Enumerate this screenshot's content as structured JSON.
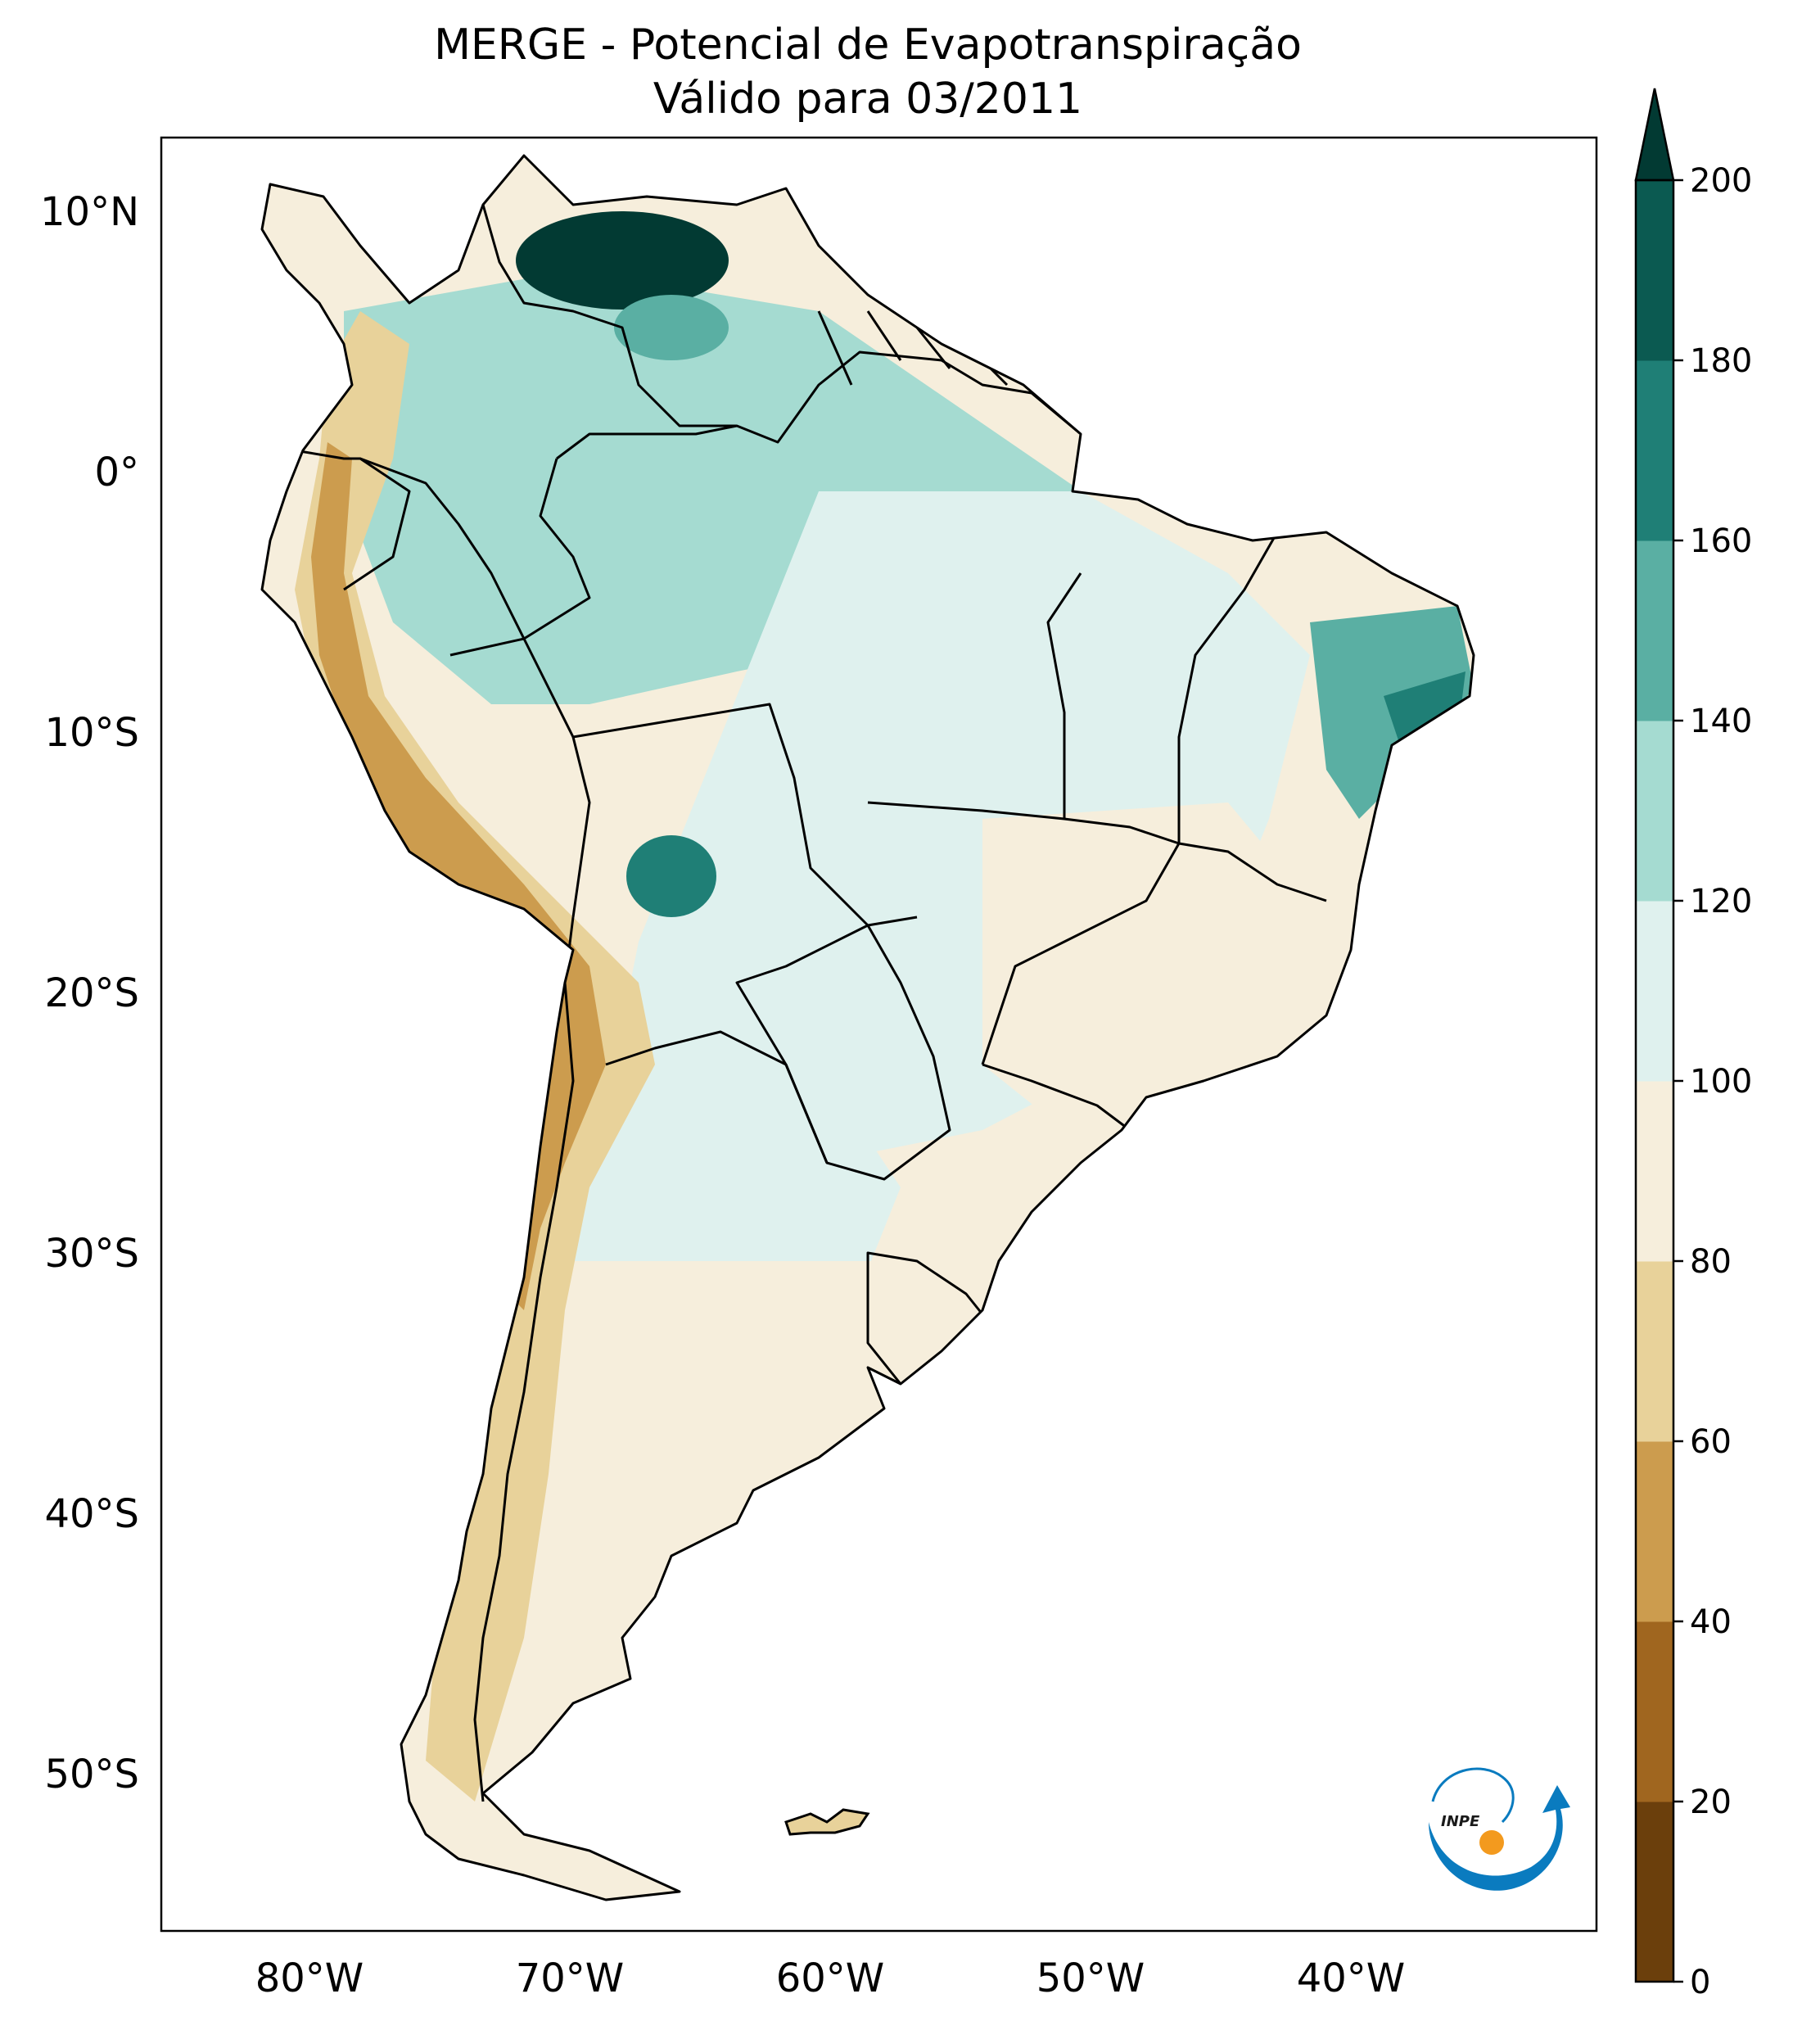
{
  "title": {
    "line1": "MERGE - Potencial de Evapotranspiração",
    "line2": "Válido para 03/2011"
  },
  "axes": {
    "lat_labels": [
      "10°N",
      "0°",
      "10°S",
      "20°S",
      "30°S",
      "40°S",
      "50°S"
    ],
    "lon_labels": [
      "80°W",
      "70°W",
      "60°W",
      "50°W",
      "40°W"
    ]
  },
  "colorbar": {
    "ticks": [
      "0",
      "20",
      "40",
      "60",
      "80",
      "100",
      "120",
      "140",
      "160",
      "180",
      "200"
    ],
    "colors": [
      "#6b3f0c",
      "#a0661f",
      "#cc9c4e",
      "#e8d29a",
      "#f6eedc",
      "#dff1ee",
      "#a5dbd1",
      "#5aafa3",
      "#1f7f76",
      "#0b5a51",
      "#023a33"
    ],
    "extend": "max"
  },
  "logo": {
    "text": "INPE"
  },
  "palette": {
    "brown_dark": "#6b3f0c",
    "brown": "#a0661f",
    "tan": "#cc9c4e",
    "sand": "#e8d29a",
    "cream": "#f6eedc",
    "pale_teal": "#dff1ee",
    "light_teal": "#a5dbd1",
    "teal": "#5aafa3",
    "deep_teal": "#1f7f76",
    "darkest": "#023a33",
    "logo_blue": "#0a7bbf",
    "logo_orange": "#f39a1e"
  }
}
